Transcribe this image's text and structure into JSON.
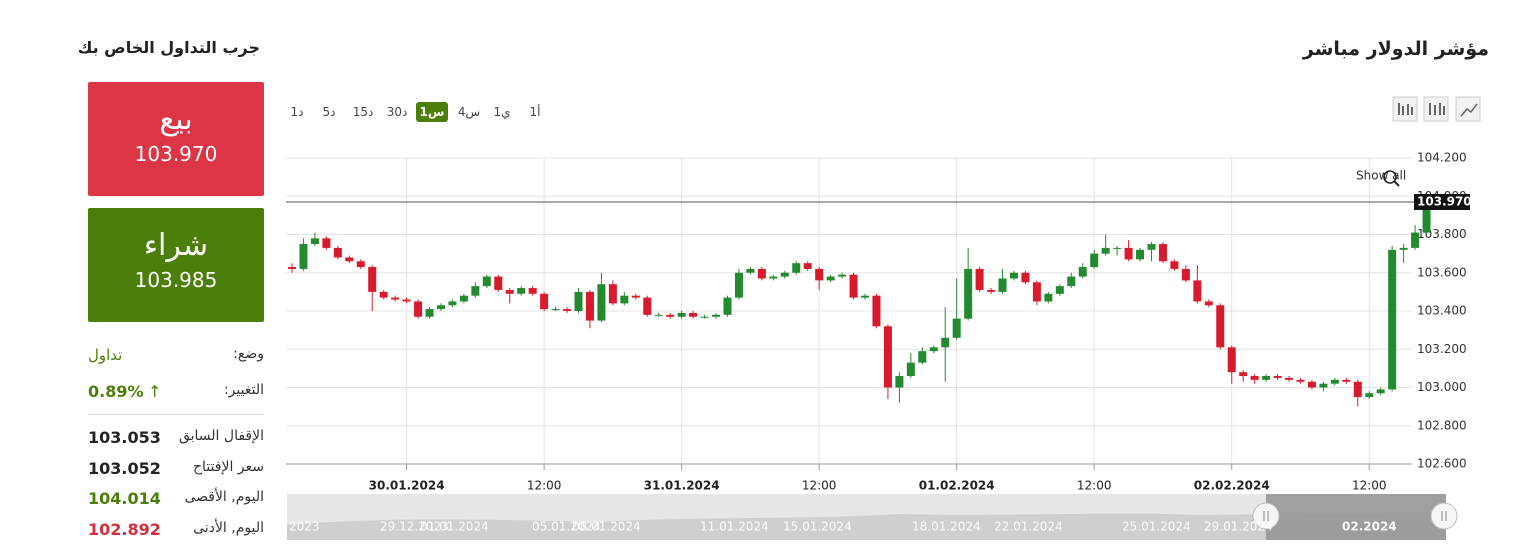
{
  "header": {
    "title": "مؤشر الدولار مباشر",
    "timeframes": [
      "1د",
      "5د",
      "15د",
      "30د",
      "1س",
      "4س",
      "1ي",
      "1أ"
    ],
    "active_timeframe": "1س"
  },
  "panel": {
    "title": "جرب التداول الخاص بك",
    "sell": {
      "label": "بيع",
      "price": "103.970"
    },
    "buy": {
      "label": "شراء",
      "price": "103.985"
    },
    "status": {
      "label": "وضع:",
      "value": "تداول"
    },
    "change": {
      "label": "التغيير:",
      "value": "0.89%",
      "arrow": "↑"
    },
    "stats": [
      {
        "label": "الإقفال السابق",
        "value": "103.053"
      },
      {
        "label": "سعر الإفتتاح",
        "value": "103.052"
      },
      {
        "label": "اليوم, الأقصى",
        "value": "104.014"
      },
      {
        "label": "اليوم, الأدنى",
        "value": "102.892"
      }
    ]
  },
  "chart_data": {
    "type": "candlestick",
    "show_all": "Show all",
    "up_color": "#238a2f",
    "down_color": "#d81b2c",
    "grid": true,
    "ylim": [
      102.6,
      104.2
    ],
    "yticks": [
      {
        "value": 102.6,
        "label": "102.600"
      },
      {
        "value": 102.8,
        "label": "102.800"
      },
      {
        "value": 103.0,
        "label": "103.000"
      },
      {
        "value": 103.2,
        "label": "103.200"
      },
      {
        "value": 103.4,
        "label": "103.400"
      },
      {
        "value": 103.6,
        "label": "103.600"
      },
      {
        "value": 103.8,
        "label": "103.800"
      },
      {
        "value": 104.0,
        "label": "104.000"
      },
      {
        "value": 104.2,
        "label": "104.200"
      }
    ],
    "xticks": [
      {
        "value": 10,
        "label": "30.01.2024"
      },
      {
        "value": 22,
        "label": "12:00"
      },
      {
        "value": 34,
        "label": "31.01.2024"
      },
      {
        "value": 46,
        "label": "12:00"
      },
      {
        "value": 58,
        "label": "01.02.2024"
      },
      {
        "value": 70,
        "label": "12:00"
      },
      {
        "value": 82,
        "label": "02.02.2024"
      },
      {
        "value": 94,
        "label": "12:00"
      }
    ],
    "last_price": {
      "value": 103.97,
      "label": "103.970"
    },
    "open": [
      103.63,
      103.62,
      103.75,
      103.78,
      103.73,
      103.68,
      103.66,
      103.63,
      103.5,
      103.47,
      103.46,
      103.45,
      103.37,
      103.41,
      103.43,
      103.45,
      103.48,
      103.53,
      103.58,
      103.51,
      103.49,
      103.52,
      103.49,
      103.41,
      103.41,
      103.4,
      103.5,
      103.35,
      103.54,
      103.44,
      103.48,
      103.47,
      103.38,
      103.38,
      103.37,
      103.39,
      103.37,
      103.37,
      103.38,
      103.47,
      103.6,
      103.62,
      103.57,
      103.58,
      103.6,
      103.65,
      103.62,
      103.56,
      103.58,
      103.59,
      103.47,
      103.48,
      103.32,
      103.0,
      103.06,
      103.13,
      103.19,
      103.21,
      103.26,
      103.36,
      103.62,
      103.51,
      103.5,
      103.57,
      103.6,
      103.55,
      103.45,
      103.49,
      103.53,
      103.58,
      103.63,
      103.7,
      103.73,
      103.73,
      103.67,
      103.72,
      103.75,
      103.66,
      103.62,
      103.56,
      103.45,
      103.43,
      103.21,
      103.08,
      103.06,
      103.04,
      103.06,
      103.05,
      103.04,
      103.03,
      103.0,
      103.02,
      103.04,
      103.03,
      102.95,
      102.97,
      102.99,
      103.72,
      103.73,
      103.81
    ],
    "high": [
      103.65,
      103.78,
      103.81,
      103.79,
      103.74,
      103.69,
      103.67,
      103.64,
      103.51,
      103.48,
      103.47,
      103.46,
      103.42,
      103.44,
      103.46,
      103.49,
      103.55,
      103.59,
      103.59,
      103.52,
      103.53,
      103.53,
      103.5,
      103.42,
      103.42,
      103.52,
      103.51,
      103.6,
      103.56,
      103.5,
      103.49,
      103.48,
      103.39,
      103.39,
      103.4,
      103.4,
      103.38,
      103.39,
      103.48,
      103.62,
      103.63,
      103.63,
      103.59,
      103.61,
      103.66,
      103.66,
      103.63,
      103.59,
      103.6,
      103.6,
      103.49,
      103.49,
      103.33,
      103.08,
      103.18,
      103.21,
      103.22,
      103.42,
      103.57,
      103.73,
      103.63,
      103.52,
      103.62,
      103.61,
      103.61,
      103.56,
      103.5,
      103.54,
      103.6,
      103.65,
      103.72,
      103.8,
      103.74,
      103.77,
      103.73,
      103.76,
      103.76,
      103.67,
      103.64,
      103.64,
      103.46,
      103.44,
      103.22,
      103.09,
      103.07,
      103.07,
      103.07,
      103.06,
      103.05,
      103.04,
      103.03,
      103.05,
      103.05,
      103.04,
      102.98,
      103.0,
      103.74,
      103.75,
      103.85,
      103.99
    ],
    "low": [
      103.6,
      103.61,
      103.74,
      103.72,
      103.67,
      103.65,
      103.62,
      103.4,
      103.46,
      103.45,
      103.44,
      103.36,
      103.36,
      103.4,
      103.42,
      103.44,
      103.47,
      103.52,
      103.5,
      103.44,
      103.48,
      103.48,
      103.4,
      103.4,
      103.39,
      103.39,
      103.31,
      103.34,
      103.43,
      103.43,
      103.46,
      103.37,
      103.37,
      103.36,
      103.36,
      103.36,
      103.36,
      103.36,
      103.37,
      103.46,
      103.59,
      103.56,
      103.56,
      103.57,
      103.59,
      103.61,
      103.51,
      103.55,
      103.57,
      103.46,
      103.46,
      103.31,
      102.94,
      102.92,
      103.05,
      103.12,
      103.18,
      103.03,
      103.25,
      103.35,
      103.5,
      103.49,
      103.49,
      103.56,
      103.54,
      103.43,
      103.44,
      103.48,
      103.52,
      103.57,
      103.62,
      103.69,
      103.69,
      103.66,
      103.66,
      103.66,
      103.65,
      103.61,
      103.55,
      103.44,
      103.42,
      103.2,
      103.02,
      103.03,
      103.02,
      103.03,
      103.04,
      103.03,
      103.02,
      102.99,
      102.98,
      103.01,
      103.02,
      102.9,
      102.94,
      102.96,
      102.98,
      103.65,
      103.72,
      103.8
    ],
    "close": [
      103.62,
      103.75,
      103.78,
      103.73,
      103.68,
      103.66,
      103.63,
      103.5,
      103.47,
      103.46,
      103.45,
      103.37,
      103.41,
      103.43,
      103.45,
      103.48,
      103.53,
      103.58,
      103.51,
      103.49,
      103.52,
      103.49,
      103.41,
      103.41,
      103.4,
      103.5,
      103.35,
      103.54,
      103.44,
      103.48,
      103.47,
      103.38,
      103.38,
      103.37,
      103.39,
      103.37,
      103.37,
      103.38,
      103.47,
      103.6,
      103.62,
      103.57,
      103.58,
      103.6,
      103.65,
      103.62,
      103.56,
      103.58,
      103.59,
      103.47,
      103.48,
      103.32,
      103.0,
      103.06,
      103.13,
      103.19,
      103.21,
      103.26,
      103.36,
      103.62,
      103.51,
      103.5,
      103.57,
      103.6,
      103.55,
      103.45,
      103.49,
      103.53,
      103.58,
      103.63,
      103.7,
      103.73,
      103.73,
      103.67,
      103.72,
      103.75,
      103.66,
      103.62,
      103.56,
      103.45,
      103.43,
      103.21,
      103.08,
      103.06,
      103.04,
      103.06,
      103.05,
      103.04,
      103.03,
      103.0,
      103.02,
      103.04,
      103.03,
      102.95,
      102.97,
      102.99,
      103.72,
      103.73,
      103.81,
      103.97
    ],
    "navigator_labels": [
      "2023",
      "29.12.2023",
      "01.01.2024",
      "05.01.2024",
      "08.01.2024",
      "11.01.2024",
      "15.01.2024",
      "18.01.2024",
      "22.01.2024",
      "25.01.2024",
      "29.01.2024",
      "02.2024"
    ]
  }
}
